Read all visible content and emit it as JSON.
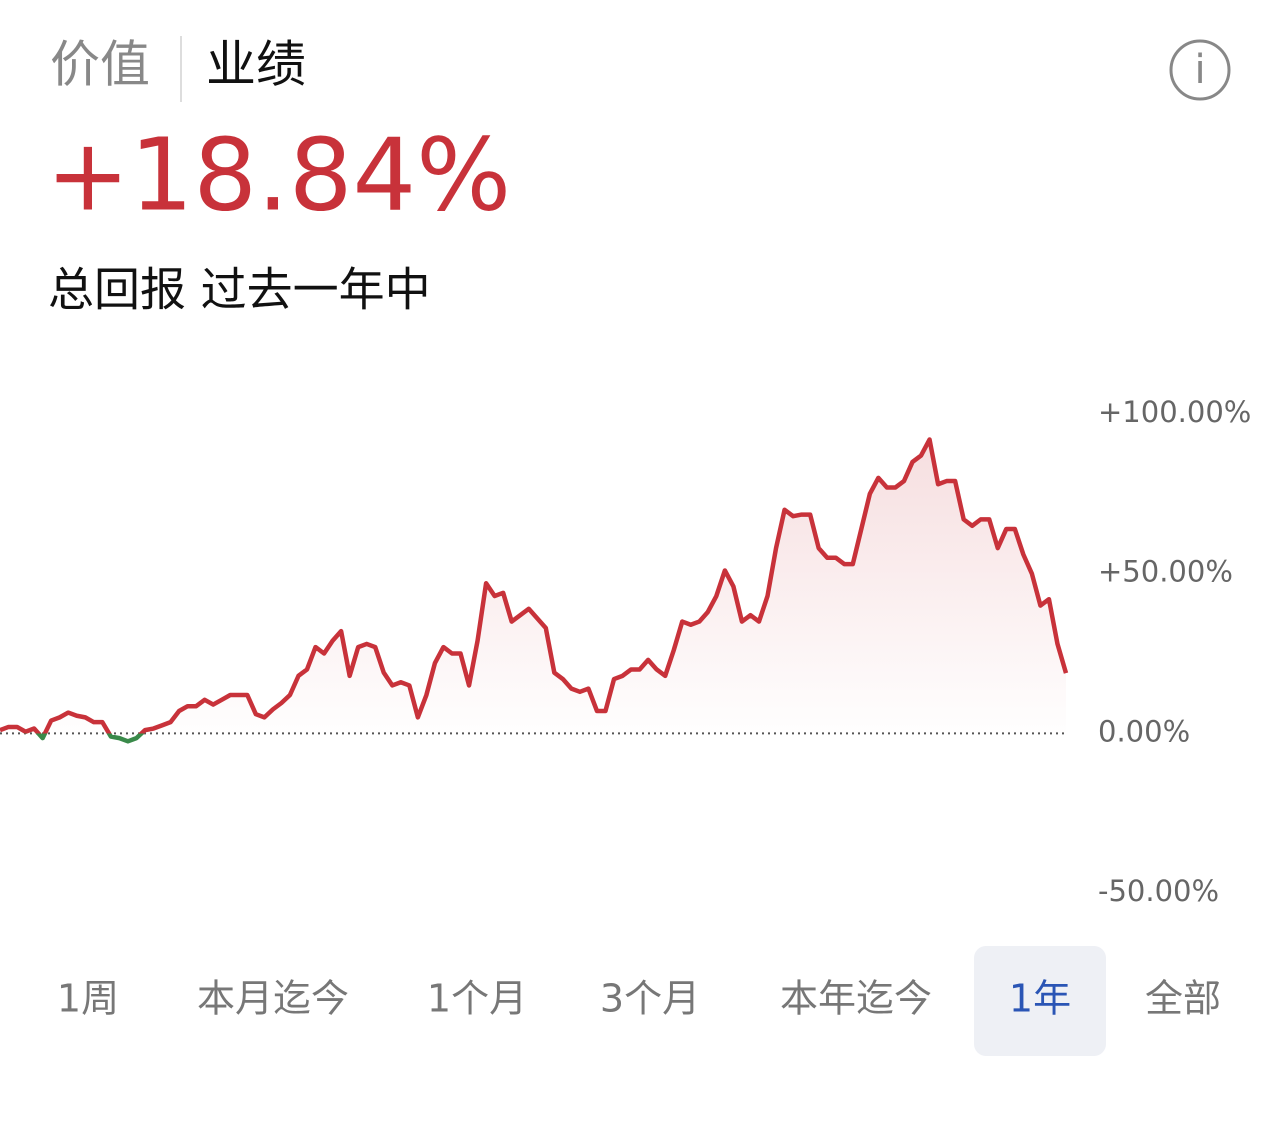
{
  "tabs": [
    {
      "label": "价值"
    },
    {
      "label": "业绩",
      "selected": true
    }
  ],
  "info_icon": "i",
  "headline": {
    "value": "+18.84%",
    "subtitle": "总回报 过去一年中"
  },
  "chart_data": {
    "type": "line",
    "values": [
      1,
      2,
      2,
      0.5,
      1.5,
      -1.5,
      4,
      5,
      6.5,
      5.5,
      5,
      3.5,
      3.5,
      -1,
      -1.5,
      -2.5,
      -1.5,
      1,
      1.5,
      2.5,
      3.5,
      7,
      8.5,
      8.5,
      10.5,
      9,
      10.5,
      12,
      12,
      12,
      6,
      5,
      7.5,
      9.5,
      12,
      18,
      20,
      27,
      25,
      29,
      32,
      18,
      27,
      28,
      27,
      19,
      15,
      16,
      15,
      5,
      12,
      22,
      27,
      25,
      25,
      15,
      29,
      47,
      43,
      44,
      35,
      37,
      39,
      36,
      33,
      19,
      17,
      14,
      13,
      14,
      7,
      7,
      17,
      18,
      20,
      20,
      23,
      20,
      18,
      26,
      35,
      34,
      35,
      38,
      43,
      51,
      46,
      35,
      37,
      35,
      43,
      58,
      70,
      68,
      68.5,
      68.5,
      58,
      55,
      55,
      53,
      53,
      64,
      75,
      80,
      77,
      77,
      79,
      85,
      87,
      92,
      78,
      79,
      79,
      67,
      65,
      67,
      67,
      58,
      64,
      64,
      56,
      50,
      40,
      42,
      28,
      18.84
    ],
    "color": "#c8323a",
    "negative_color": "#3a8a4a",
    "ylim": [
      -50,
      100
    ],
    "yticks": [
      {
        "value": 100,
        "label": "+100.00%"
      },
      {
        "value": 50,
        "label": "+50.00%"
      },
      {
        "value": 0,
        "label": "0.00%"
      },
      {
        "value": -50,
        "label": "-50.00%"
      }
    ]
  },
  "ranges": {
    "items": [
      "1周",
      "本月迄今",
      "1个月",
      "3个月",
      "本年迄今",
      "1年",
      "全部"
    ],
    "selected": 5
  }
}
